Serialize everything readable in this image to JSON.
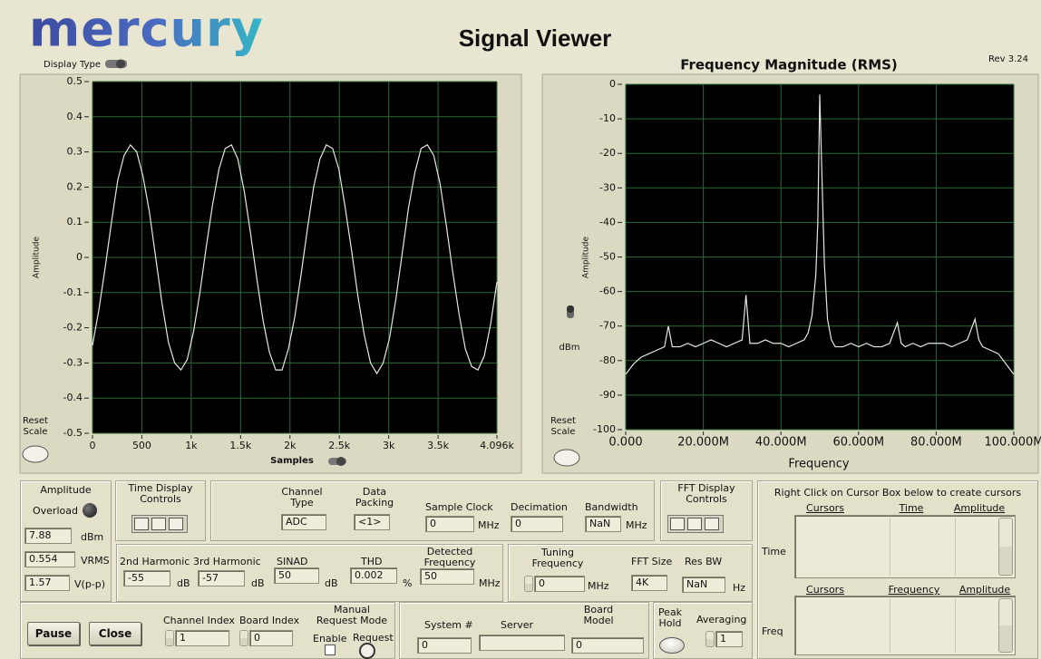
{
  "header": {
    "logo": "mercury",
    "title": "Signal Viewer",
    "display_type": "Display Type",
    "rev": "Rev 3.24"
  },
  "chart_data": [
    {
      "type": "line",
      "y_label": "Amplitude",
      "x_label": "Samples",
      "reset_label": "Reset Scale",
      "color": "#e6e6e6",
      "background": "#000000",
      "grid": true,
      "grid_color": "#2b6a34",
      "xlim": [
        0,
        4096
      ],
      "ylim": [
        -0.5,
        0.5
      ],
      "xticks": [
        0,
        500,
        {
          "value": 1000,
          "label": "1k"
        },
        {
          "value": 1500,
          "label": "1.5k"
        },
        {
          "value": 2000,
          "label": "2k"
        },
        {
          "value": 2500,
          "label": "2.5k"
        },
        {
          "value": 3000,
          "label": "3k"
        },
        {
          "value": 3500,
          "label": "3.5k"
        },
        {
          "value": 4096,
          "label": "4.096k"
        }
      ],
      "yticks": [
        0.5,
        0.4,
        0.3,
        0.2,
        0.1,
        0,
        -0.1,
        -0.2,
        -0.3,
        -0.4,
        -0.5
      ],
      "x": [
        0,
        64,
        128,
        192,
        256,
        320,
        384,
        448,
        512,
        576,
        640,
        704,
        768,
        832,
        896,
        960,
        1024,
        1088,
        1152,
        1216,
        1280,
        1344,
        1408,
        1472,
        1536,
        1600,
        1664,
        1728,
        1792,
        1856,
        1920,
        1984,
        2048,
        2112,
        2176,
        2240,
        2304,
        2368,
        2432,
        2496,
        2560,
        2624,
        2688,
        2752,
        2816,
        2880,
        2944,
        3008,
        3072,
        3136,
        3200,
        3264,
        3328,
        3392,
        3456,
        3520,
        3584,
        3648,
        3712,
        3776,
        3840,
        3904,
        3968,
        4032,
        4096
      ],
      "values": [
        -0.25,
        -0.15,
        -0.03,
        0.1,
        0.22,
        0.29,
        0.32,
        0.3,
        0.23,
        0.13,
        0.0,
        -0.13,
        -0.24,
        -0.3,
        -0.32,
        -0.29,
        -0.21,
        -0.1,
        0.03,
        0.15,
        0.25,
        0.31,
        0.32,
        0.28,
        0.19,
        0.07,
        -0.06,
        -0.18,
        -0.27,
        -0.32,
        -0.32,
        -0.26,
        -0.17,
        -0.05,
        0.08,
        0.2,
        0.28,
        0.32,
        0.31,
        0.25,
        0.14,
        0.02,
        -0.11,
        -0.22,
        -0.3,
        -0.33,
        -0.3,
        -0.23,
        -0.12,
        0.01,
        0.14,
        0.24,
        0.31,
        0.32,
        0.29,
        0.21,
        0.09,
        -0.04,
        -0.16,
        -0.26,
        -0.31,
        -0.32,
        -0.28,
        -0.19,
        -0.07
      ]
    },
    {
      "type": "line",
      "title": "Frequency Magnitude (RMS)",
      "y_label": "Amplitude",
      "x_label": "Frequency",
      "unit_label": "dBm",
      "reset_label": "Reset Scale",
      "color": "#e6e6e6",
      "background": "#000000",
      "grid": true,
      "grid_color": "#2b6a34",
      "xlim": [
        0,
        100000000
      ],
      "ylim": [
        -100,
        0
      ],
      "xticks": [
        {
          "value": 0,
          "label": "0.000"
        },
        {
          "value": 20000000,
          "label": "20.000M"
        },
        {
          "value": 40000000,
          "label": "40.000M"
        },
        {
          "value": 60000000,
          "label": "60.000M"
        },
        {
          "value": 80000000,
          "label": "80.000M"
        },
        {
          "value": 100000000,
          "label": "100.000M"
        }
      ],
      "yticks": [
        0,
        -10,
        -20,
        -30,
        -40,
        -50,
        -60,
        -70,
        -80,
        -90,
        -100
      ],
      "x": [
        0,
        2000000,
        4000000,
        6000000,
        8000000,
        10000000,
        11000000,
        12000000,
        14000000,
        16000000,
        18000000,
        20000000,
        22000000,
        24000000,
        26000000,
        28000000,
        30000000,
        31000000,
        32000000,
        34000000,
        36000000,
        38000000,
        40000000,
        42000000,
        44000000,
        46000000,
        47000000,
        48000000,
        49000000,
        49500000,
        50000000,
        50600000,
        51200000,
        52000000,
        53000000,
        54000000,
        56000000,
        58000000,
        60000000,
        62000000,
        64000000,
        66000000,
        68000000,
        69000000,
        70000000,
        71000000,
        72000000,
        74000000,
        76000000,
        78000000,
        80000000,
        82000000,
        84000000,
        86000000,
        88000000,
        89000000,
        90000000,
        91000000,
        92000000,
        94000000,
        96000000,
        98000000,
        100000000
      ],
      "values": [
        -84,
        -81,
        -79,
        -78,
        -77,
        -76,
        -70,
        -76,
        -76,
        -75,
        -76,
        -75,
        -74,
        -75,
        -76,
        -75,
        -74,
        -61,
        -75,
        -75,
        -74,
        -75,
        -75,
        -76,
        -75,
        -74,
        -72,
        -67,
        -55,
        -40,
        -3,
        -28,
        -52,
        -68,
        -74,
        -76,
        -76,
        -75,
        -76,
        -75,
        -76,
        -76,
        -75,
        -72,
        -69,
        -75,
        -76,
        -75,
        -76,
        -75,
        -75,
        -75,
        -76,
        -75,
        -74,
        -71,
        -68,
        -74,
        -76,
        -77,
        -78,
        -81,
        -84
      ]
    }
  ],
  "amplitude": {
    "title": "Amplitude",
    "overload": "Overload",
    "dbm": "7.88",
    "dbm_unit": "dBm",
    "vrms": "0.554",
    "vrms_unit": "VRMS",
    "vpp": "1.57",
    "vpp_unit": "V(p-p)"
  },
  "time_controls": "Time Display Controls",
  "fft_controls": "FFT Display Controls",
  "channel": {
    "type_label": "Channel Type",
    "type": "ADC",
    "packing_label": "Data Packing",
    "packing": "<1>",
    "clock_label": "Sample Clock",
    "clock": "0",
    "clock_unit": "MHz",
    "decimation_label": "Decimation",
    "decimation": "0",
    "bandwidth_label": "Bandwidth",
    "bandwidth": "NaN",
    "bandwidth_unit": "MHz"
  },
  "analysis": {
    "h2_label": "2nd Harmonic",
    "h2": "-55",
    "h2_unit": "dB",
    "h3_label": "3rd Harmonic",
    "h3": "-57",
    "h3_unit": "dB",
    "sinad_label": "SINAD",
    "sinad": "50",
    "sinad_unit": "dB",
    "thd_label": "THD",
    "thd": "0.002",
    "thd_unit": "%",
    "freq_label": "Detected Frequency",
    "freq": "50",
    "freq_unit": "MHz"
  },
  "tuning": {
    "tuning_label": "Tuning Frequency",
    "tuning": "0",
    "tuning_unit": "MHz",
    "fft_size_label": "FFT Size",
    "fft_size": "4K",
    "res_bw_label": "Res BW",
    "res_bw": "NaN",
    "res_bw_unit": "Hz"
  },
  "cursors": {
    "hint": "Right Click on Cursor Box below to create cursors",
    "time_columns": [
      "Cursors",
      "Time",
      "Amplitude"
    ],
    "time_label": "Time",
    "freq_columns": [
      "Cursors",
      "Frequency",
      "Amplitude"
    ],
    "freq_label": "Freq"
  },
  "controls": {
    "pause": "Pause",
    "close": "Close",
    "channel_index_label": "Channel Index",
    "channel_index": "1",
    "board_index_label": "Board Index",
    "board_index": "0",
    "request_mode": "Manual Request Mode",
    "enable": "Enable",
    "request": "Request"
  },
  "system": {
    "system_label": "System #",
    "system": "0",
    "server_label": "Server",
    "board_model_label": "Board Model",
    "board_model": "0"
  },
  "fft_options": {
    "peak_hold": "Peak Hold",
    "averaging_label": "Averaging",
    "averaging": "1"
  }
}
